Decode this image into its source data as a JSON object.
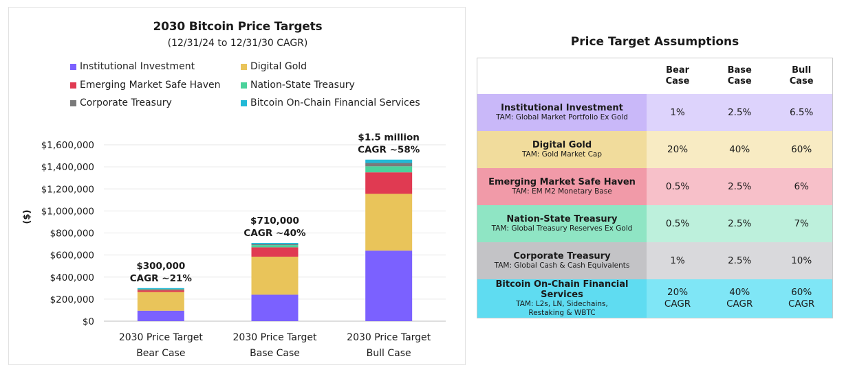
{
  "chart_data": {
    "type": "bar",
    "stacked": true,
    "title": "2030 Bitcoin Price Targets",
    "subtitle": "(12/31/24 to 12/31/30 CAGR)",
    "ylabel": "($)",
    "xlabel": "",
    "ylim": [
      0,
      1600000
    ],
    "yticks": [
      0,
      200000,
      400000,
      600000,
      800000,
      1000000,
      1200000,
      1400000,
      1600000
    ],
    "ytick_labels": [
      "$0",
      "$200,000",
      "$400,000",
      "$600,000",
      "$800,000",
      "$1,000,000",
      "$1,200,000",
      "$1,400,000",
      "$1,600,000"
    ],
    "categories": [
      "2030 Price Target Bear Case",
      "2030 Price Target Base Case",
      "2030 Price Target Bull Case"
    ],
    "category_lines": [
      [
        "2030 Price Target",
        "Bear Case"
      ],
      [
        "2030 Price Target",
        "Base Case"
      ],
      [
        "2030 Price Target",
        "Bull Case"
      ]
    ],
    "series": [
      {
        "name": "Institutional Investment",
        "color": "#7b61ff",
        "values": [
          95000,
          240000,
          640000
        ]
      },
      {
        "name": "Digital Gold",
        "color": "#e9c45a",
        "values": [
          170000,
          345000,
          515000
        ]
      },
      {
        "name": "Emerging Market Safe Haven",
        "color": "#e03a52",
        "values": [
          15000,
          85000,
          195000
        ]
      },
      {
        "name": "Nation-State Treasury",
        "color": "#4ad29b",
        "values": [
          7000,
          20000,
          55000
        ]
      },
      {
        "name": "Corporate Treasury",
        "color": "#7a7a7a",
        "values": [
          6000,
          8000,
          30000
        ]
      },
      {
        "name": "Bitcoin On-Chain Financial Services",
        "color": "#22b9d6",
        "values": [
          7000,
          12000,
          30000
        ]
      }
    ],
    "annotations": [
      {
        "line1": "$300,000",
        "line2": "CAGR ~21%"
      },
      {
        "line1": "$710,000",
        "line2": "CAGR ~40%"
      },
      {
        "line1": "$1.5 million",
        "line2": "CAGR ~58%"
      }
    ]
  },
  "table": {
    "title": "Price Target Assumptions",
    "headers": [
      {
        "line1": "Bear",
        "line2": "Case"
      },
      {
        "line1": "Base",
        "line2": "Case"
      },
      {
        "line1": "Bull",
        "line2": "Case"
      }
    ],
    "rows": [
      {
        "name": "Institutional Investment",
        "tam": "TAM: Global Market Portfolio Ex Gold",
        "tam2": "",
        "bear": "1%",
        "base": "2.5%",
        "bull": "6.5%",
        "bear2": "",
        "base2": "",
        "bull2": "",
        "label_color": "#c9b8f9",
        "row_color": "#ddd3fc"
      },
      {
        "name": "Digital Gold",
        "tam": "TAM: Gold Market Cap",
        "tam2": "",
        "bear": "20%",
        "base": "40%",
        "bull": "60%",
        "bear2": "",
        "base2": "",
        "bull2": "",
        "label_color": "#f1dc9c",
        "row_color": "#f8ebc3"
      },
      {
        "name": "Emerging Market Safe Haven",
        "tam": "TAM: EM M2 Monetary Base",
        "tam2": "",
        "bear": "0.5%",
        "base": "2.5%",
        "bull": "6%",
        "bear2": "",
        "base2": "",
        "bull2": "",
        "label_color": "#f19aa8",
        "row_color": "#f7c0c9"
      },
      {
        "name": "Nation-State Treasury",
        "tam": "TAM: Global Treasury Reserves Ex Gold",
        "tam2": "",
        "bear": "0.5%",
        "base": "2.5%",
        "bull": "7%",
        "bear2": "",
        "base2": "",
        "bull2": "",
        "label_color": "#8fe5c4",
        "row_color": "#bdf0dc"
      },
      {
        "name": "Corporate Treasury",
        "tam": "TAM: Global Cash & Cash Equivalents",
        "tam2": "",
        "bear": "1%",
        "base": "2.5%",
        "bull": "10%",
        "bear2": "",
        "base2": "",
        "bull2": "",
        "label_color": "#c3c3c6",
        "row_color": "#d9d9dc"
      },
      {
        "name": "Bitcoin On-Chain Financial Services",
        "tam": "TAM: L2s, LN, Sidechains,",
        "tam2": "Restaking & WBTC",
        "bear": "20%",
        "base": "40%",
        "bull": "60%",
        "bear2": "CAGR",
        "base2": "CAGR",
        "bull2": "CAGR",
        "label_color": "#5fdcf1",
        "row_color": "#7fe6f6"
      }
    ]
  }
}
